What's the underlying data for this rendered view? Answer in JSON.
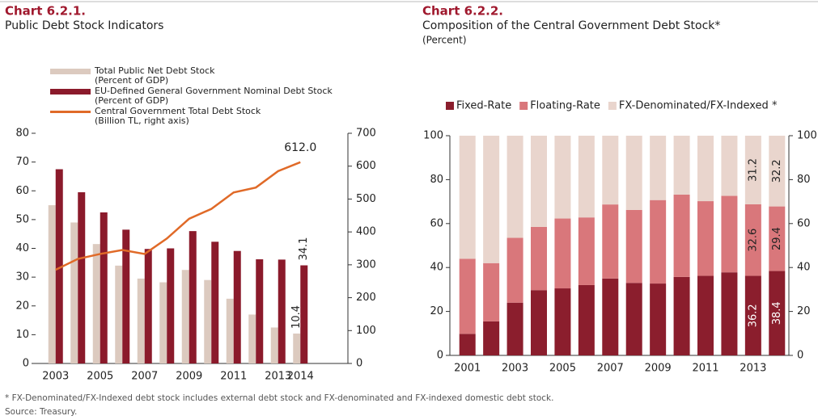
{
  "chart_data": [
    {
      "type": "bar",
      "title": "Chart 6.2.1.",
      "subtitle": "Public Debt Stock Indicators",
      "categories": [
        "2003",
        null,
        "2005",
        null,
        "2007",
        null,
        "2009",
        null,
        "2011",
        null,
        "2013",
        "2014"
      ],
      "series": [
        {
          "name": "Total Public Net Debt Stock\n(Percent of GDP)",
          "color": "#dccabf",
          "values": [
            55,
            49,
            41.5,
            34,
            29.5,
            28.2,
            32.5,
            29,
            22.5,
            17,
            12.5,
            10.4
          ],
          "value_labels": [
            null,
            null,
            null,
            null,
            null,
            null,
            null,
            null,
            null,
            null,
            null,
            "10.4"
          ]
        },
        {
          "name": "EU-Defined General Government Nominal Debt Stock\n(Percent of GDP)",
          "color": "#8b1a2b",
          "values": [
            67.5,
            59.5,
            52.5,
            46.5,
            39.8,
            40,
            46,
            42.3,
            39.1,
            36.2,
            36.1,
            34.1
          ],
          "value_labels": [
            null,
            null,
            null,
            null,
            null,
            null,
            null,
            null,
            null,
            null,
            null,
            "34.1"
          ]
        },
        {
          "name": "Central Government Total Debt Stock\n(Billion TL, right axis)",
          "color": "#e06a28",
          "type": "line",
          "axis": "y2",
          "values": [
            285,
            318,
            333,
            345,
            333,
            380,
            440,
            470,
            520,
            535,
            585,
            612
          ],
          "value_labels": [
            null,
            null,
            null,
            null,
            null,
            null,
            null,
            null,
            null,
            null,
            null,
            "612.0"
          ]
        }
      ],
      "ylim": [
        0,
        80
      ],
      "yticks": [
        0,
        10,
        20,
        30,
        40,
        50,
        60,
        70,
        80
      ],
      "y2lim": [
        0,
        700
      ],
      "y2ticks": [
        0,
        100,
        200,
        300,
        400,
        500,
        600,
        700
      ],
      "legend": "top-left",
      "grid": false
    },
    {
      "type": "bar",
      "stacked": true,
      "title": "Chart 6.2.2.",
      "subtitle": "Composition of the Central Government Debt Stock*",
      "unit": "(Percent)",
      "categories": [
        "2001",
        null,
        "2003",
        null,
        "2005",
        null,
        "2007",
        null,
        "2009",
        null,
        "2011",
        null,
        "2013",
        null
      ],
      "series": [
        {
          "name": "Fixed-Rate",
          "color": "#8b1e2d",
          "values": [
            9.8,
            15.5,
            24,
            29.7,
            30.5,
            32,
            35,
            33,
            32.7,
            35.7,
            36.2,
            37.8,
            36.2,
            38.4
          ],
          "value_labels": [
            null,
            null,
            null,
            null,
            null,
            null,
            null,
            null,
            null,
            null,
            null,
            null,
            "36.2",
            "38.4"
          ]
        },
        {
          "name": "Floating-Rate",
          "color": "#d9777b",
          "values": [
            34.2,
            26.5,
            29.5,
            28.8,
            31.8,
            30.8,
            33.7,
            33.2,
            38,
            37.5,
            34,
            34.8,
            32.6,
            29.4
          ],
          "value_labels": [
            null,
            null,
            null,
            null,
            null,
            null,
            null,
            null,
            null,
            null,
            null,
            null,
            "32.6",
            "29.4"
          ]
        },
        {
          "name": "FX-Denominated/FX-Indexed *",
          "color": "#e9d5cd",
          "values": [
            56,
            58,
            46.5,
            41.5,
            37.7,
            37.2,
            31.3,
            33.8,
            29.3,
            26.8,
            29.8,
            27.4,
            31.2,
            32.2
          ],
          "value_labels": [
            null,
            null,
            null,
            null,
            null,
            null,
            null,
            null,
            null,
            null,
            null,
            null,
            "31.2",
            "32.2"
          ]
        }
      ],
      "ylim": [
        0,
        100
      ],
      "yticks": [
        0,
        20,
        40,
        60,
        80,
        100
      ],
      "y2lim": [
        0,
        100
      ],
      "y2ticks": [
        0,
        20,
        40,
        60,
        80,
        100
      ],
      "legend": "top",
      "grid": false
    }
  ],
  "footnote": "* FX-Denominated/FX-Indexed debt stock includes external debt stock and FX-denominated and FX-indexed domestic debt stock.",
  "source": "Source: Treasury."
}
